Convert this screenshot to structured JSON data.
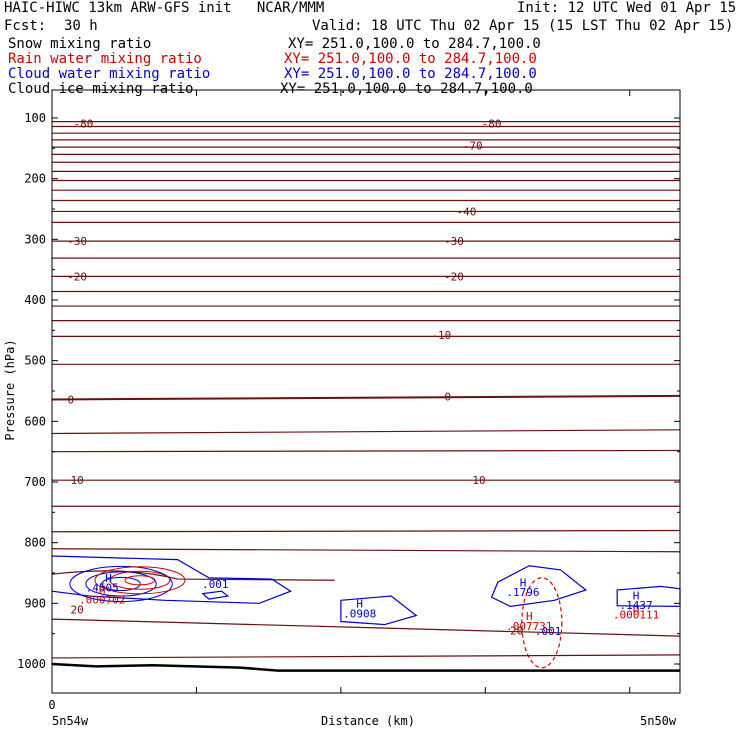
{
  "header": {
    "left_line1": "HAIC-HIWC 13km ARW-GFS init   NCAR/MMM",
    "right_line1": "Init: 12 UTC Wed 01 Apr 15",
    "fcst_label": "Fcst:",
    "fcst_value": "30 h",
    "valid": "Valid: 18 UTC Thu 02 Apr 15 (15 LST Thu 02 Apr 15)",
    "fields": [
      {
        "name": "Snow mixing ratio",
        "xy": "XY= 251.0,100.0 to 284.7,100.0",
        "color": "#000000"
      },
      {
        "name": "Rain water mixing ratio",
        "xy": "XY= 251.0,100.0 to 284.7,100.0",
        "color": "#cc0000"
      },
      {
        "name": "Cloud water mixing ratio",
        "xy": "XY= 251.0,100.0 to 284.7,100.0",
        "color": "#0000cc"
      },
      {
        "name": "Cloud ice mixing ratio",
        "xy": "XY= 251.0,100.0 to 284.7,100.0",
        "color": "#000000"
      }
    ]
  },
  "chart_data": {
    "type": "contour",
    "xlabel": "Distance (km)",
    "ylabel": "Pressure (hPa)",
    "x_start_label": "5n54w",
    "x_end_label": "5n50w",
    "x_zero_label": "0",
    "y_ticks": [
      100,
      200,
      300,
      400,
      500,
      600,
      700,
      800,
      900,
      1000
    ],
    "colors": {
      "temperature": "#6b0f0f",
      "cloud_water": "#0000cc",
      "rain_water": "#cc0000",
      "ground": "#000000"
    },
    "temperature_labels": [
      {
        "text": "-80",
        "x": 0.05,
        "p": 109
      },
      {
        "text": "-80",
        "x": 0.7,
        "p": 109
      },
      {
        "text": "-70",
        "x": 0.67,
        "p": 145
      },
      {
        "text": "-40",
        "x": 0.66,
        "p": 254
      },
      {
        "text": "-30",
        "x": 0.04,
        "p": 303
      },
      {
        "text": "-30",
        "x": 0.64,
        "p": 303
      },
      {
        "text": "-20",
        "x": 0.04,
        "p": 361
      },
      {
        "text": "-20",
        "x": 0.64,
        "p": 361
      },
      {
        "text": "-10",
        "x": 0.62,
        "p": 458
      },
      {
        "text": "0",
        "x": 0.03,
        "p": 564
      },
      {
        "text": "0",
        "x": 0.63,
        "p": 559
      },
      {
        "text": "10",
        "x": 0.04,
        "p": 697
      },
      {
        "text": "10",
        "x": 0.68,
        "p": 697
      },
      {
        "text": "20",
        "x": 0.04,
        "p": 910
      },
      {
        "text": "20",
        "x": 0.74,
        "p": 945
      }
    ],
    "cloud_water_labels": [
      {
        "text": "H",
        "x": 0.09,
        "p": 858
      },
      {
        "text": ".4505",
        "x": 0.08,
        "p": 874
      },
      {
        "text": ".001",
        "x": 0.26,
        "p": 868
      },
      {
        "text": "H",
        "x": 0.49,
        "p": 900
      },
      {
        "text": ".0908",
        "x": 0.49,
        "p": 917
      },
      {
        "text": "H",
        "x": 0.75,
        "p": 866
      },
      {
        "text": ".1796",
        "x": 0.75,
        "p": 881
      },
      {
        "text": "H",
        "x": 0.93,
        "p": 887
      },
      {
        "text": ".1437",
        "x": 0.93,
        "p": 903
      },
      {
        "text": ".001",
        "x": 0.79,
        "p": 946
      }
    ],
    "rain_water_labels": [
      {
        "text": "H",
        "x": 0.08,
        "p": 877
      },
      {
        "text": ".000702",
        "x": 0.08,
        "p": 894
      },
      {
        "text": "H",
        "x": 0.76,
        "p": 921
      },
      {
        "text": ".007731",
        "x": 0.76,
        "p": 937
      },
      {
        "text": "H",
        "x": 0.93,
        "p": 913
      },
      {
        "text": ".000111",
        "x": 0.93,
        "p": 918
      }
    ]
  }
}
